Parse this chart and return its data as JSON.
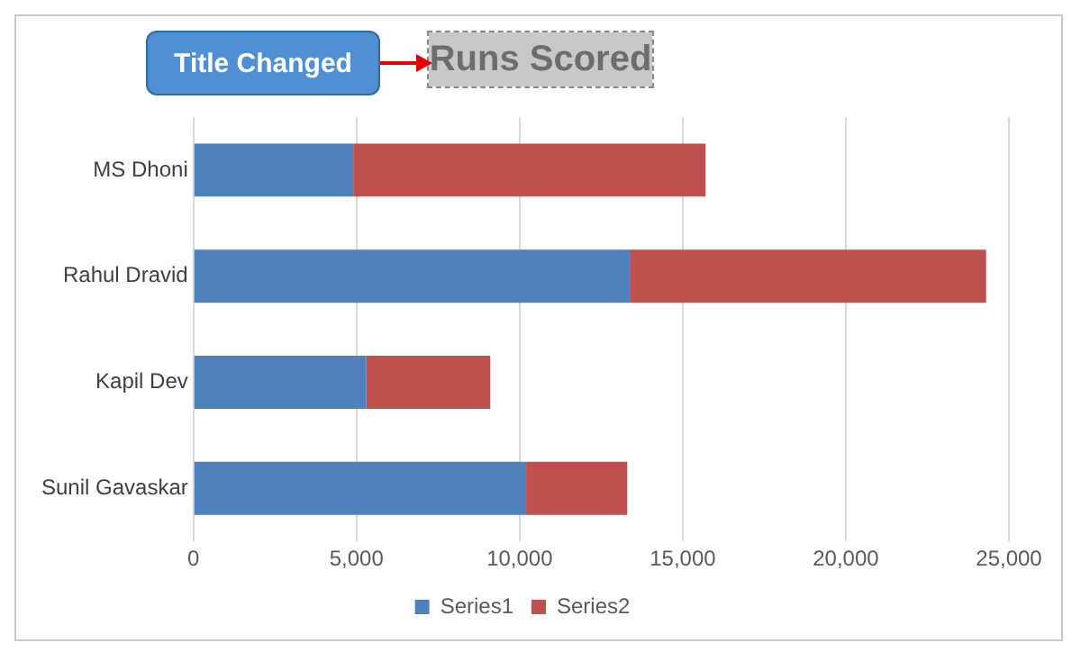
{
  "chart_data": {
    "type": "bar",
    "orientation": "horizontal",
    "stacked": true,
    "title": "Runs Scored",
    "annotations": [
      "Title Changed"
    ],
    "categories": [
      "MS Dhoni",
      "Rahul Dravid",
      "Kapil Dev",
      "Sunil Gavaskar"
    ],
    "series": [
      {
        "name": "Series1",
        "color": "#4f81bd",
        "values": [
          4900,
          13400,
          5300,
          10200
        ]
      },
      {
        "name": "Series2",
        "color": "#c0504d",
        "values": [
          10800,
          10900,
          3800,
          3100
        ]
      }
    ],
    "xlim": [
      0,
      25000
    ],
    "xticks": [
      0,
      {
        "value": 5000,
        "label": "5,000"
      },
      {
        "value": 10000,
        "label": "10,000"
      },
      {
        "value": 15000,
        "label": "15,000"
      },
      {
        "value": 20000,
        "label": "20,000"
      },
      {
        "value": 25000,
        "label": "25,000"
      }
    ],
    "grid": "x",
    "legend": "bottom"
  }
}
